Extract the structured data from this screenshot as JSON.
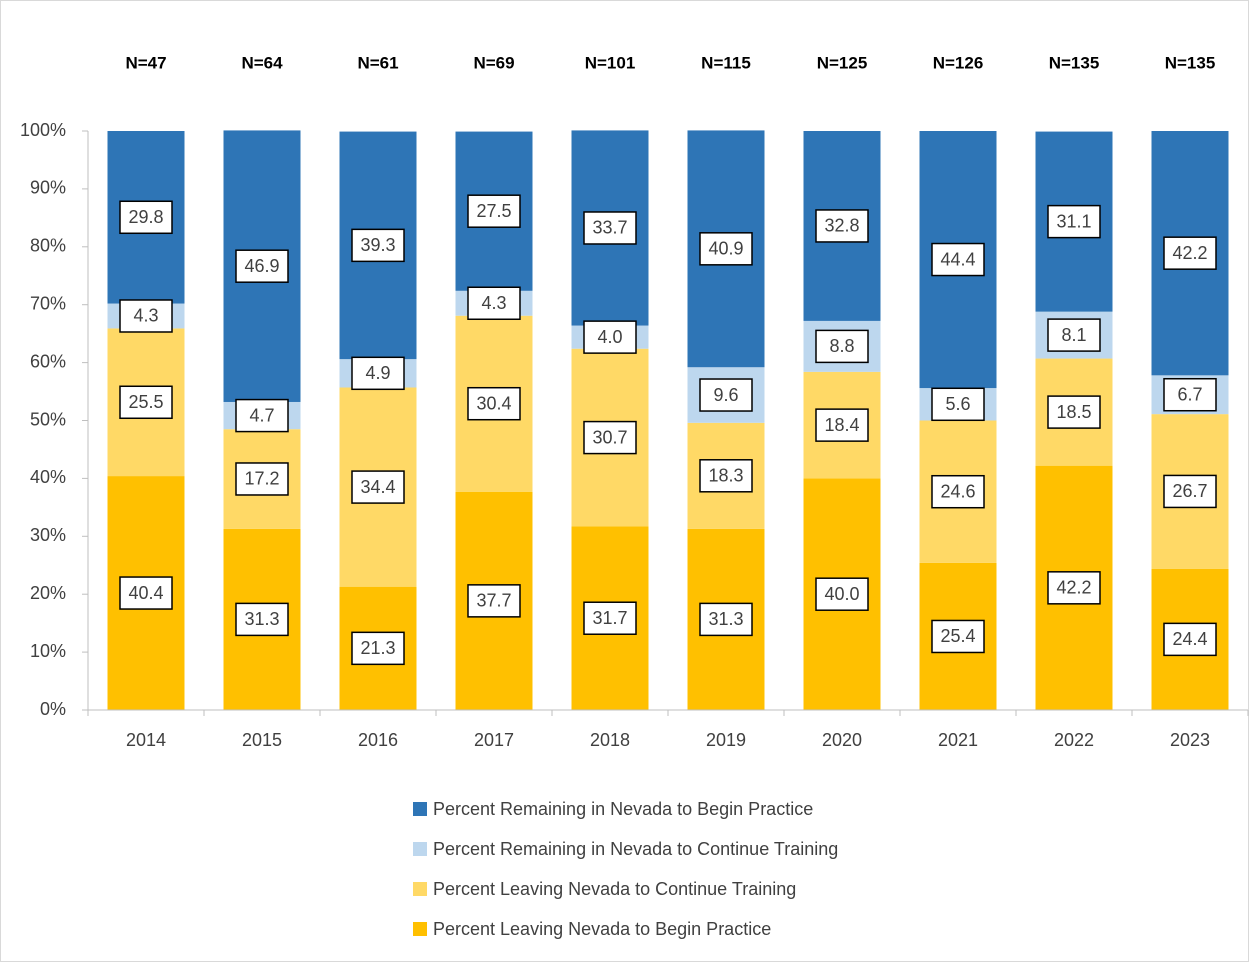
{
  "chart_data": {
    "type": "stacked_bar",
    "categories": [
      "2014",
      "2015",
      "2016",
      "2017",
      "2018",
      "2019",
      "2020",
      "2021",
      "2022",
      "2023"
    ],
    "annotations": [
      "N=47",
      "N=64",
      "N=61",
      "N=69",
      "N=101",
      "N=115",
      "N=125",
      "N=126",
      "N=135",
      "N=135"
    ],
    "series": [
      {
        "name": "Percent Leaving Nevada to Begin Practice",
        "color": "#ffc000",
        "values": [
          40.4,
          31.3,
          21.3,
          37.7,
          31.7,
          31.3,
          40.0,
          25.4,
          42.2,
          24.4
        ],
        "value_labels": [
          "40.4",
          "31.3",
          "21.3",
          "37.7",
          "31.7",
          "31.3",
          "40.0",
          "25.4",
          "42.2",
          "24.4"
        ]
      },
      {
        "name": "Percent Leaving Nevada to Continue Training",
        "color": "#ffd966",
        "values": [
          25.5,
          17.2,
          34.4,
          30.4,
          30.7,
          18.3,
          18.4,
          24.6,
          18.5,
          26.7
        ],
        "value_labels": [
          "25.5",
          "17.2",
          "34.4",
          "30.4",
          "30.7",
          "18.3",
          "18.4",
          "24.6",
          "18.5",
          "26.7"
        ]
      },
      {
        "name": "Percent Remaining in Nevada to Continue Training",
        "color": "#bdd7ee",
        "values": [
          4.3,
          4.7,
          4.9,
          4.3,
          4.0,
          9.6,
          8.8,
          5.6,
          8.1,
          6.7
        ],
        "value_labels": [
          "4.3",
          "4.7",
          "4.9",
          "4.3",
          "4.0",
          "9.6",
          "8.8",
          "5.6",
          "8.1",
          "6.7"
        ]
      },
      {
        "name": "Percent Remaining in Nevada to Begin Practice",
        "color": "#2e75b6",
        "values": [
          29.8,
          46.9,
          39.3,
          27.5,
          33.7,
          40.9,
          32.8,
          44.4,
          31.1,
          42.2
        ],
        "value_labels": [
          "29.8",
          "46.9",
          "39.3",
          "27.5",
          "33.7",
          "40.9",
          "32.8",
          "44.4",
          "31.1",
          "42.2"
        ]
      }
    ],
    "ylim": [
      0,
      100
    ],
    "yticks": [
      {
        "value": 0,
        "label": "0%"
      },
      {
        "value": 10,
        "label": "10%"
      },
      {
        "value": 20,
        "label": "20%"
      },
      {
        "value": 30,
        "label": "30%"
      },
      {
        "value": 40,
        "label": "40%"
      },
      {
        "value": 50,
        "label": "50%"
      },
      {
        "value": 60,
        "label": "60%"
      },
      {
        "value": 70,
        "label": "70%"
      },
      {
        "value": 80,
        "label": "80%"
      },
      {
        "value": 90,
        "label": "90%"
      },
      {
        "value": 100,
        "label": "100%"
      }
    ],
    "grid": false,
    "legend": "bottom"
  }
}
